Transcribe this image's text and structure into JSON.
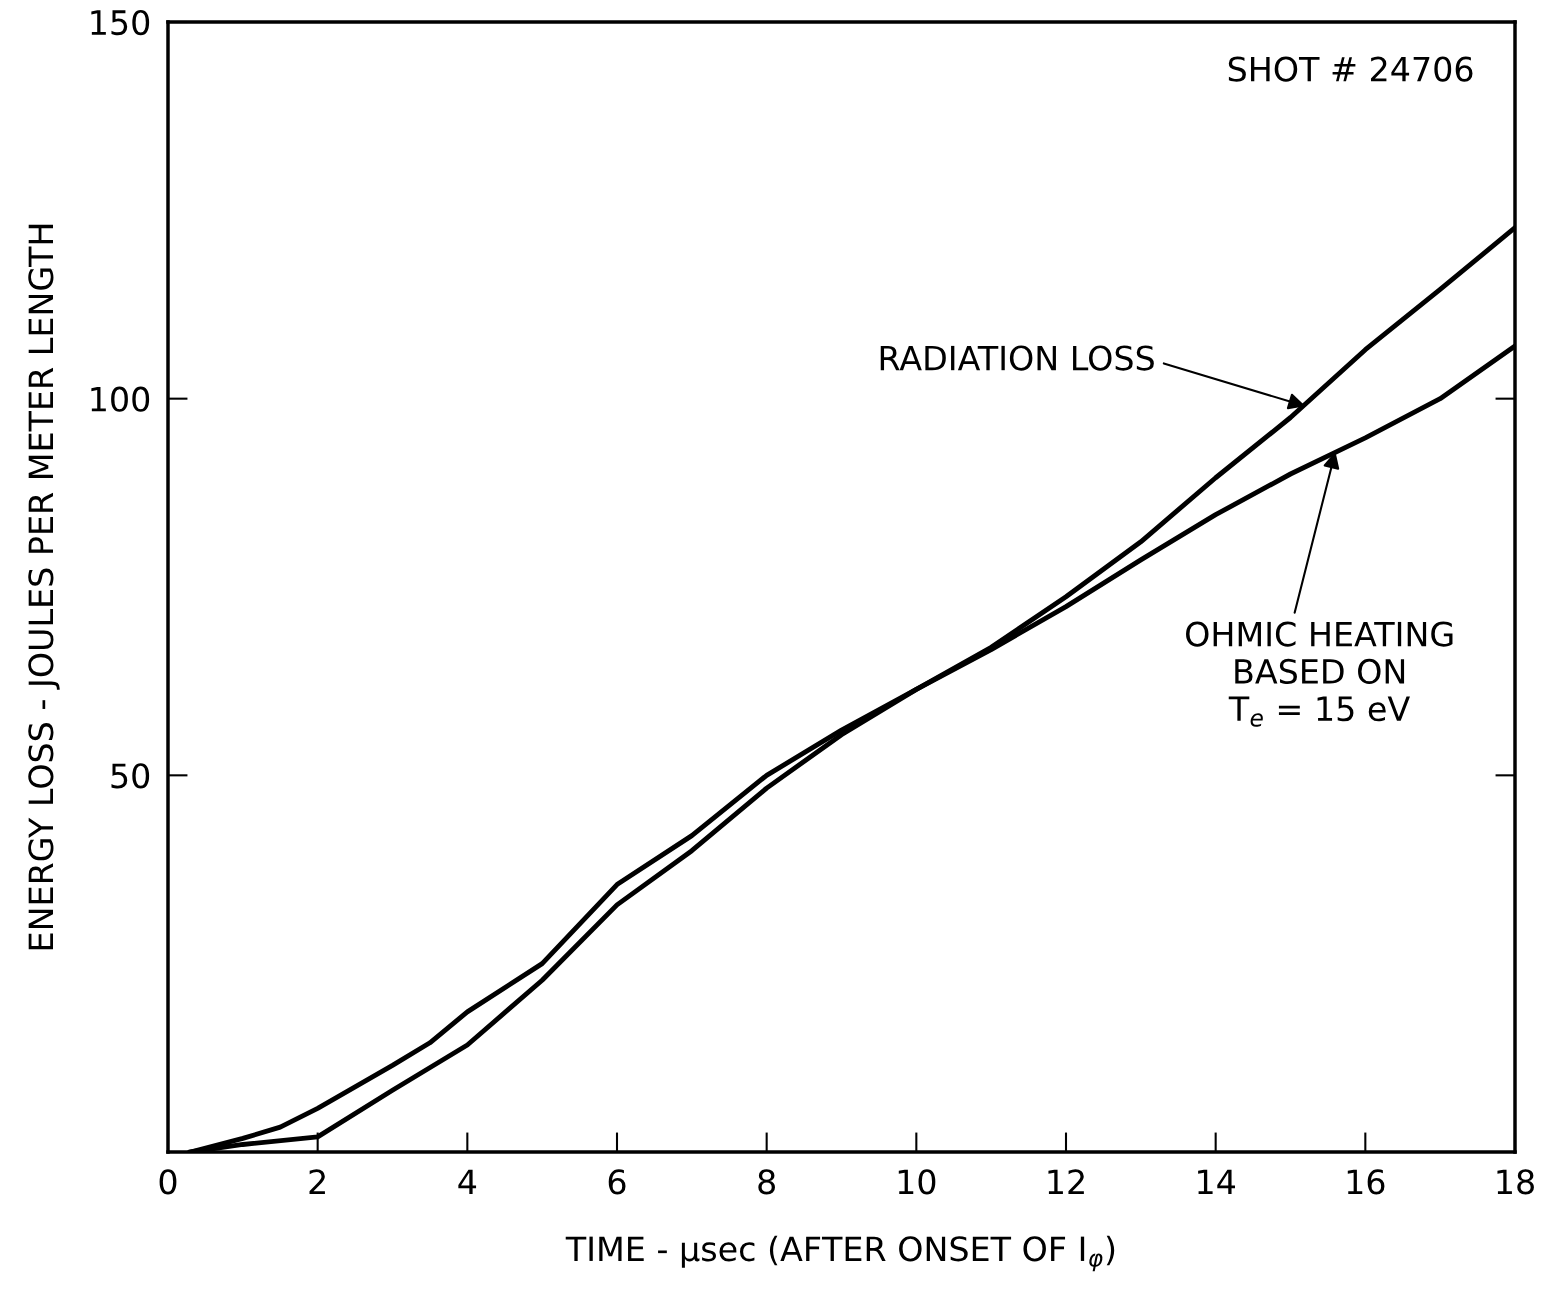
{
  "chart_data": {
    "type": "line",
    "xlabel": "TIME - μsec (AFTER ONSET OF I$_{φ}$)",
    "ylabel": "ENERGY LOSS - JOULES PER METER LENGTH",
    "series": [
      {
        "color": "#000000",
        "x": [
          0.3,
          1,
          1.5,
          2,
          3,
          3.5,
          4,
          5,
          6,
          7,
          8,
          9,
          10,
          11,
          12,
          13,
          14,
          15,
          16,
          17,
          18
        ],
        "values": [
          0,
          1.8,
          3.3,
          5.8,
          11.5,
          14.5,
          18.6,
          25,
          35.5,
          42,
          50,
          56,
          61.4,
          67,
          73.7,
          81,
          89.5,
          97.5,
          106.5,
          114.5,
          122.7
        ]
      },
      {
        "color": "#000000",
        "x": [
          0.3,
          1,
          2,
          3,
          4,
          5,
          6,
          7,
          8,
          9,
          10,
          11,
          12,
          13,
          14,
          15,
          16,
          17,
          18
        ],
        "values": [
          0,
          1,
          2,
          8.2,
          14.2,
          22.8,
          32.8,
          40,
          48.3,
          55.4,
          61.4,
          66.7,
          72.4,
          78.6,
          84.6,
          90,
          94.8,
          100,
          107
        ]
      }
    ],
    "annotations": [
      "SHOT # 24706",
      {
        "text": "RADIATION LOSS",
        "x": 15.2,
        "y": 99
      },
      {
        "text": "OHMIC HEATING\nBASED ON\nT$_{e}$ = 15 eV",
        "x": 15.6,
        "y": 93
      }
    ],
    "xlim": [
      0,
      18
    ],
    "ylim": [
      0,
      150
    ],
    "xticks": [
      0,
      2,
      4,
      6,
      8,
      10,
      12,
      14,
      16,
      18
    ],
    "yticks": [
      50,
      100,
      150
    ],
    "grid": false,
    "marker": "none",
    "line_style": "solid"
  }
}
